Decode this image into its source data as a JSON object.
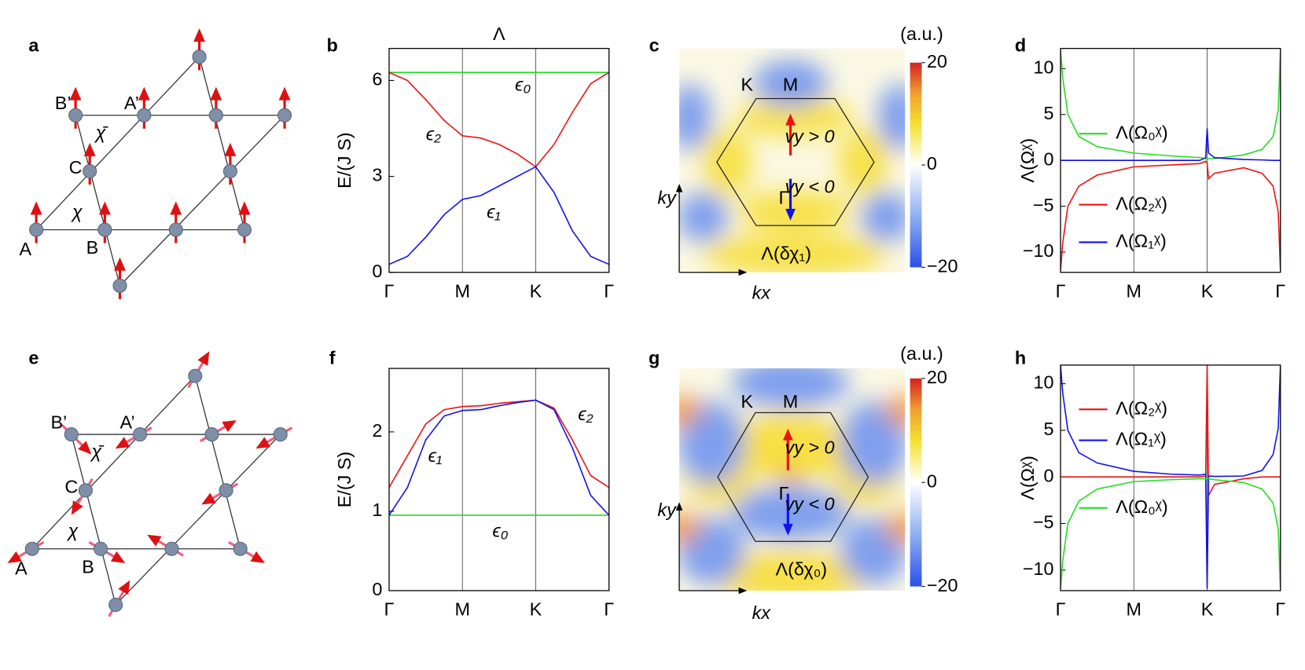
{
  "panel_labels": [
    "a",
    "b",
    "c",
    "d",
    "e",
    "f",
    "g",
    "h"
  ],
  "lattices": [
    {
      "labels": [
        "A",
        "B",
        "C",
        "B’",
        "A’",
        "χ̄",
        "χ"
      ]
    },
    {
      "labels": [
        "A",
        "B",
        "C",
        "B’",
        "A’",
        "χ̄",
        "χ"
      ]
    }
  ],
  "chart_data": [
    {
      "type": "line",
      "title": "Λ",
      "ylabel": "E/(J S)",
      "x": [
        0,
        0.25,
        0.5,
        0.75,
        1,
        1.25,
        1.5,
        1.75,
        2,
        2.25,
        2.5,
        2.75,
        3
      ],
      "xlim": [
        0,
        3
      ],
      "xticks": [
        {
          "value": 0,
          "label": "Γ"
        },
        {
          "value": 1,
          "label": "M"
        },
        {
          "value": 2,
          "label": "K"
        },
        {
          "value": 3,
          "label": "Γ"
        }
      ],
      "ylim": [
        0,
        7
      ],
      "yticks": [
        0,
        3,
        6
      ],
      "legend": false,
      "series": [
        {
          "name": "ϵ₀",
          "color": "#22dd22",
          "values": [
            6.25,
            6.25,
            6.25,
            6.25,
            6.25,
            6.25,
            6.25,
            6.25,
            6.25,
            6.25,
            6.25,
            6.25,
            6.25
          ]
        },
        {
          "name": "ϵ₂",
          "color": "#ee1111",
          "values": [
            6.25,
            6.0,
            5.4,
            4.75,
            4.27,
            4.2,
            4.0,
            3.7,
            3.3,
            4.0,
            5.0,
            5.9,
            6.25
          ]
        },
        {
          "name": "ϵ₁",
          "color": "#1111ee",
          "values": [
            0.25,
            0.5,
            1.1,
            1.8,
            2.28,
            2.4,
            2.7,
            3.0,
            3.3,
            2.5,
            1.3,
            0.5,
            0.25
          ]
        }
      ]
    },
    {
      "type": "heatmap",
      "colorbar_label": "(a.u.)",
      "clim": [
        -20,
        20
      ],
      "cticks": [
        20,
        0,
        {
          "value": -20,
          "label": "−20"
        }
      ],
      "annotations": [
        "K",
        "M",
        "Γ",
        "vy > 0",
        "vy < 0",
        "ky",
        "kx",
        "Λ(δχ₁)"
      ]
    },
    {
      "type": "line",
      "ylabel": "Λ(Ωᵡ)",
      "x": [
        0,
        0.03,
        0.1,
        0.25,
        0.5,
        1,
        1.5,
        1.9,
        1.98,
        2,
        2.02,
        2.1,
        2.5,
        2.75,
        2.9,
        2.97,
        3
      ],
      "xlim": [
        0,
        3
      ],
      "xticks": [
        {
          "value": 0,
          "label": "Γ"
        },
        {
          "value": 1,
          "label": "M"
        },
        {
          "value": 2,
          "label": "K"
        },
        {
          "value": 3,
          "label": "Γ"
        }
      ],
      "ylim": [
        -12.2,
        12.2
      ],
      "yticks": [
        {
          "value": -10,
          "label": "−10"
        },
        {
          "value": -5,
          "label": "−5"
        },
        0,
        5,
        10
      ],
      "legend": true,
      "series": [
        {
          "name": "Λ(Ω₀ᵡ)",
          "color": "#22dd22",
          "values": [
            12,
            9,
            5,
            2.6,
            1.5,
            0.8,
            0.5,
            0.3,
            0.2,
            0.1,
            0.2,
            0.2,
            0.6,
            1.2,
            2.6,
            5.5,
            12
          ]
        },
        {
          "name": "Λ(Ω₂ᵡ)",
          "color": "#ee1111",
          "values": [
            -12,
            -9,
            -5,
            -2.8,
            -1.6,
            -0.7,
            -0.5,
            -0.35,
            -0.1,
            -0.3,
            -2,
            -1.4,
            -0.8,
            -1.4,
            -2.8,
            -5.6,
            -12
          ]
        },
        {
          "name": "Λ(Ω₁ᵡ)",
          "color": "#1111ee",
          "values": [
            0,
            0,
            0,
            0,
            0,
            0,
            0,
            0,
            0.3,
            3.5,
            0.8,
            0.3,
            0.1,
            0.05,
            0,
            0,
            0
          ]
        }
      ]
    },
    {
      "type": "line",
      "ylabel": "E/(J S)",
      "x": [
        0,
        0.25,
        0.5,
        0.75,
        1,
        1.25,
        1.5,
        1.75,
        2,
        2.25,
        2.5,
        2.75,
        3
      ],
      "xlim": [
        0,
        3
      ],
      "xticks": [
        {
          "value": 0,
          "label": "Γ"
        },
        {
          "value": 1,
          "label": "M"
        },
        {
          "value": 2,
          "label": "K"
        },
        {
          "value": 3,
          "label": "Γ"
        }
      ],
      "ylim": [
        0,
        2.8
      ],
      "yticks": [
        0,
        1,
        2
      ],
      "legend": false,
      "series": [
        {
          "name": "ϵ₀",
          "color": "#22dd22",
          "values": [
            0.95,
            0.95,
            0.95,
            0.95,
            0.95,
            0.95,
            0.95,
            0.95,
            0.95,
            0.95,
            0.95,
            0.95,
            0.95
          ]
        },
        {
          "name": "ϵ₂",
          "color": "#ee1111",
          "values": [
            1.3,
            1.7,
            2.1,
            2.28,
            2.32,
            2.33,
            2.36,
            2.38,
            2.4,
            2.3,
            1.9,
            1.45,
            1.3
          ]
        },
        {
          "name": "ϵ₁",
          "color": "#1111ee",
          "values": [
            0.95,
            1.3,
            1.9,
            2.2,
            2.27,
            2.28,
            2.33,
            2.37,
            2.4,
            2.28,
            1.8,
            1.2,
            0.95
          ]
        }
      ]
    },
    {
      "type": "heatmap",
      "colorbar_label": "(a.u.)",
      "clim": [
        -20,
        20
      ],
      "cticks": [
        20,
        0,
        {
          "value": -20,
          "label": "−20"
        }
      ],
      "annotations": [
        "K",
        "M",
        "Γ",
        "vy > 0",
        "vy < 0",
        "ky",
        "kx",
        "Λ(δχ₀)"
      ]
    },
    {
      "type": "line",
      "ylabel": "Λ(Ωᵡ)",
      "x": [
        0,
        0.03,
        0.1,
        0.25,
        0.5,
        1,
        1.5,
        1.9,
        1.98,
        2,
        2.02,
        2.1,
        2.5,
        2.75,
        2.9,
        2.97,
        3
      ],
      "xlim": [
        0,
        3
      ],
      "xticks": [
        {
          "value": 0,
          "label": "Γ"
        },
        {
          "value": 1,
          "label": "M"
        },
        {
          "value": 2,
          "label": "K"
        },
        {
          "value": 3,
          "label": "Γ"
        }
      ],
      "ylim": [
        -12.2,
        12
      ],
      "yticks": [
        {
          "value": -10,
          "label": "−10"
        },
        {
          "value": -5,
          "label": "−5"
        },
        0,
        5,
        10
      ],
      "legend": true,
      "series": [
        {
          "name": "Λ(Ω₂ᵡ)",
          "color": "#ee1111",
          "values": [
            0,
            0,
            0,
            0,
            0,
            0,
            0,
            0,
            0.1,
            12,
            -2,
            -0.8,
            -0.2,
            0,
            0,
            0,
            0
          ]
        },
        {
          "name": "Λ(Ω₁ᵡ)",
          "color": "#1111ee",
          "values": [
            12,
            9,
            5,
            2.6,
            1.5,
            0.6,
            0.3,
            0.2,
            0.3,
            -12,
            0.1,
            0.05,
            0.1,
            0.7,
            2.4,
            5.2,
            12
          ]
        },
        {
          "name": "Λ(Ω₀ᵡ)",
          "color": "#22dd22",
          "values": [
            -12,
            -9,
            -5,
            -2.6,
            -1.3,
            -0.5,
            -0.3,
            -0.2,
            -0.2,
            -0.1,
            -0.2,
            -0.3,
            -0.6,
            -1.3,
            -2.8,
            -5.6,
            -12
          ]
        }
      ]
    }
  ]
}
